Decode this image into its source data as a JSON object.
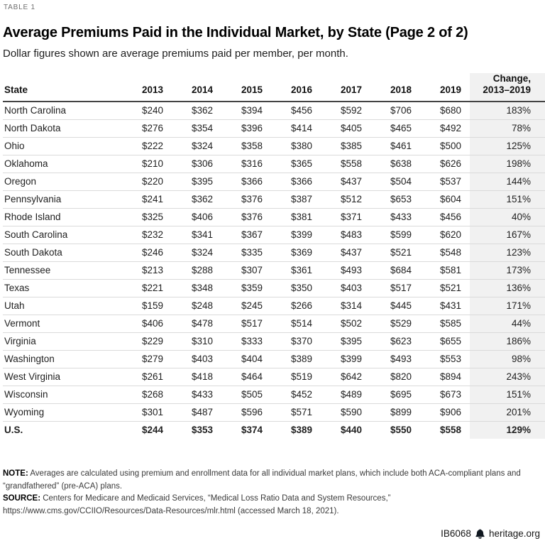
{
  "header": {
    "label": "TABLE 1",
    "title": "Average Premiums Paid in the Individual Market, by State (Page 2 of 2)",
    "subtitle": "Dollar figures shown are average premiums paid per member, per month."
  },
  "table": {
    "state_header": "State",
    "change_header": {
      "line1": "Change,",
      "line2": "2013–2019"
    }
  },
  "chart_data": {
    "type": "table",
    "title": "Average Premiums Paid in the Individual Market, by State (Page 2 of 2)",
    "subtitle": "Dollar figures shown are average premiums paid per member, per month.",
    "columns": [
      "State",
      "2013",
      "2014",
      "2015",
      "2016",
      "2017",
      "2018",
      "2019",
      "Change, 2013–2019"
    ],
    "rows": [
      [
        "North Carolina",
        "$240",
        "$362",
        "$394",
        "$456",
        "$592",
        "$706",
        "$680",
        "183%"
      ],
      [
        "North Dakota",
        "$276",
        "$354",
        "$396",
        "$414",
        "$405",
        "$465",
        "$492",
        "78%"
      ],
      [
        "Ohio",
        "$222",
        "$324",
        "$358",
        "$380",
        "$385",
        "$461",
        "$500",
        "125%"
      ],
      [
        "Oklahoma",
        "$210",
        "$306",
        "$316",
        "$365",
        "$558",
        "$638",
        "$626",
        "198%"
      ],
      [
        "Oregon",
        "$220",
        "$395",
        "$366",
        "$366",
        "$437",
        "$504",
        "$537",
        "144%"
      ],
      [
        "Pennsylvania",
        "$241",
        "$362",
        "$376",
        "$387",
        "$512",
        "$653",
        "$604",
        "151%"
      ],
      [
        "Rhode Island",
        "$325",
        "$406",
        "$376",
        "$381",
        "$371",
        "$433",
        "$456",
        "40%"
      ],
      [
        "South Carolina",
        "$232",
        "$341",
        "$367",
        "$399",
        "$483",
        "$599",
        "$620",
        "167%"
      ],
      [
        "South Dakota",
        "$246",
        "$324",
        "$335",
        "$369",
        "$437",
        "$521",
        "$548",
        "123%"
      ],
      [
        "Tennessee",
        "$213",
        "$288",
        "$307",
        "$361",
        "$493",
        "$684",
        "$581",
        "173%"
      ],
      [
        "Texas",
        "$221",
        "$348",
        "$359",
        "$350",
        "$403",
        "$517",
        "$521",
        "136%"
      ],
      [
        "Utah",
        "$159",
        "$248",
        "$245",
        "$266",
        "$314",
        "$445",
        "$431",
        "171%"
      ],
      [
        "Vermont",
        "$406",
        "$478",
        "$517",
        "$514",
        "$502",
        "$529",
        "$585",
        "44%"
      ],
      [
        "Virginia",
        "$229",
        "$310",
        "$333",
        "$370",
        "$395",
        "$623",
        "$655",
        "186%"
      ],
      [
        "Washington",
        "$279",
        "$403",
        "$404",
        "$389",
        "$399",
        "$493",
        "$553",
        "98%"
      ],
      [
        "West Virginia",
        "$261",
        "$418",
        "$464",
        "$519",
        "$642",
        "$820",
        "$894",
        "243%"
      ],
      [
        "Wisconsin",
        "$268",
        "$433",
        "$505",
        "$452",
        "$489",
        "$695",
        "$673",
        "151%"
      ],
      [
        "Wyoming",
        "$301",
        "$487",
        "$596",
        "$571",
        "$590",
        "$899",
        "$906",
        "201%"
      ]
    ],
    "total_row": [
      "U.S.",
      "$244",
      "$353",
      "$374",
      "$389",
      "$440",
      "$550",
      "$558",
      "129%"
    ]
  },
  "notes": {
    "note_label": "NOTE:",
    "note_text": "Averages are calculated using premium and enrollment data for all individual market plans, which include both ACA-compliant plans and “grandfathered” (pre-ACA) plans.",
    "source_label": "SOURCE:",
    "source_text": "Centers for Medicare and Medicaid Services, “Medical Loss Ratio Data and System Resources,” https://www.cms.gov/CCIIO/Resources/Data-Resources/mlr.html (accessed March 18, 2021)."
  },
  "footer": {
    "doc_id": "IB6068",
    "icon": "liberty-bell-icon",
    "site": "heritage.org"
  },
  "colors": {
    "change_column_shading": "#f1f1f1",
    "header_rule": "#434343",
    "row_rule": "#dadada",
    "label_gray": "#6e6e6e",
    "text": "#1b1b1b"
  }
}
